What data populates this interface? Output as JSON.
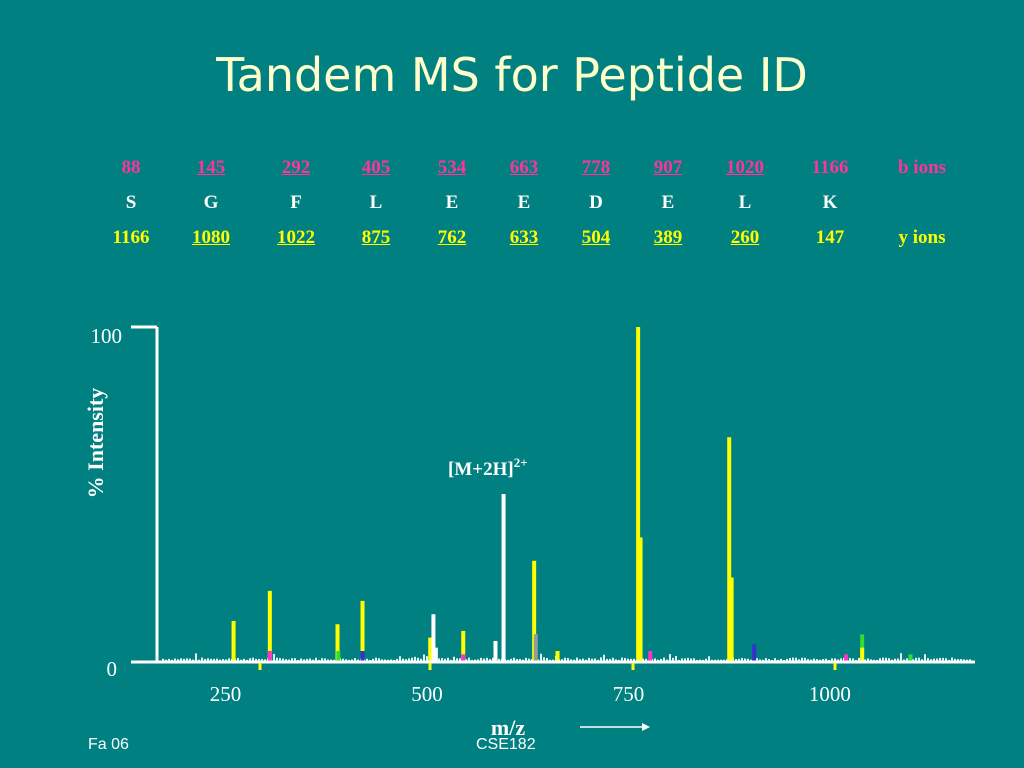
{
  "title": "Tandem MS for Peptide ID",
  "ion_table": {
    "b_label": "b ions",
    "y_label": "y ions",
    "columns": [
      {
        "b": "88",
        "aa": "S",
        "y": "1166"
      },
      {
        "b": "145",
        "aa": "G",
        "y": "1080"
      },
      {
        "b": "292",
        "aa": "F",
        "y": "1022"
      },
      {
        "b": "405",
        "aa": "L",
        "y": "875"
      },
      {
        "b": "534",
        "aa": "E",
        "y": "762"
      },
      {
        "b": "663",
        "aa": "E",
        "y": "633"
      },
      {
        "b": "778",
        "aa": "D",
        "y": "504"
      },
      {
        "b": "907",
        "aa": "E",
        "y": "389"
      },
      {
        "b": "1020",
        "aa": "L",
        "y": "260"
      },
      {
        "b": "1166",
        "aa": "K",
        "y": "147"
      }
    ]
  },
  "colors": {
    "background": "#008080",
    "title": "#ffffcc",
    "b_ion": "#ff3399",
    "y_ion": "#ffff00",
    "sequence": "#ffffff"
  },
  "chart_data": {
    "type": "bar",
    "xlabel": "m/z",
    "ylabel": "% Intensity",
    "xlim": [
      165,
      1180
    ],
    "ylim": [
      0,
      100
    ],
    "xticks": [
      250,
      500,
      750,
      1000
    ],
    "yticks": [
      0,
      100
    ],
    "annotation": {
      "text": "[M+2H]",
      "superscript": "2+",
      "x": 595
    },
    "peaks": [
      {
        "x": 260,
        "y": 12,
        "color": "#ffff00"
      },
      {
        "x": 305,
        "y": 21,
        "color": "#ffff00"
      },
      {
        "x": 305,
        "y": 3,
        "color": "#ff33cc"
      },
      {
        "x": 389,
        "y": 11,
        "color": "#ffff00"
      },
      {
        "x": 390,
        "y": 3,
        "color": "#33dd33"
      },
      {
        "x": 420,
        "y": 18,
        "color": "#ffff00"
      },
      {
        "x": 420,
        "y": 3,
        "color": "#3333cc"
      },
      {
        "x": 504,
        "y": 7,
        "color": "#ffff00"
      },
      {
        "x": 508,
        "y": 14,
        "color": "#ffffff"
      },
      {
        "x": 511,
        "y": 4,
        "color": "#ffffff"
      },
      {
        "x": 545,
        "y": 9,
        "color": "#ffff00"
      },
      {
        "x": 545,
        "y": 2,
        "color": "#ff33cc"
      },
      {
        "x": 585,
        "y": 6,
        "color": "#ffffff"
      },
      {
        "x": 595,
        "y": 50,
        "color": "#ffffff"
      },
      {
        "x": 633,
        "y": 30,
        "color": "#ffff00"
      },
      {
        "x": 635,
        "y": 8,
        "color": "#999999"
      },
      {
        "x": 662,
        "y": 3,
        "color": "#ffff00"
      },
      {
        "x": 762,
        "y": 100,
        "color": "#ffff00"
      },
      {
        "x": 765,
        "y": 37,
        "color": "#ffff00"
      },
      {
        "x": 777,
        "y": 3,
        "color": "#ff33cc"
      },
      {
        "x": 875,
        "y": 67,
        "color": "#ffff00"
      },
      {
        "x": 878,
        "y": 25,
        "color": "#ffff00"
      },
      {
        "x": 906,
        "y": 5,
        "color": "#3333cc"
      },
      {
        "x": 1020,
        "y": 2,
        "color": "#ff33cc"
      },
      {
        "x": 1040,
        "y": 8,
        "color": "#33dd33"
      },
      {
        "x": 1040,
        "y": 4,
        "color": "#ffff00"
      },
      {
        "x": 1100,
        "y": 2,
        "color": "#33dd33"
      }
    ]
  },
  "footer": {
    "left": "Fa 06",
    "center": "CSE182"
  }
}
